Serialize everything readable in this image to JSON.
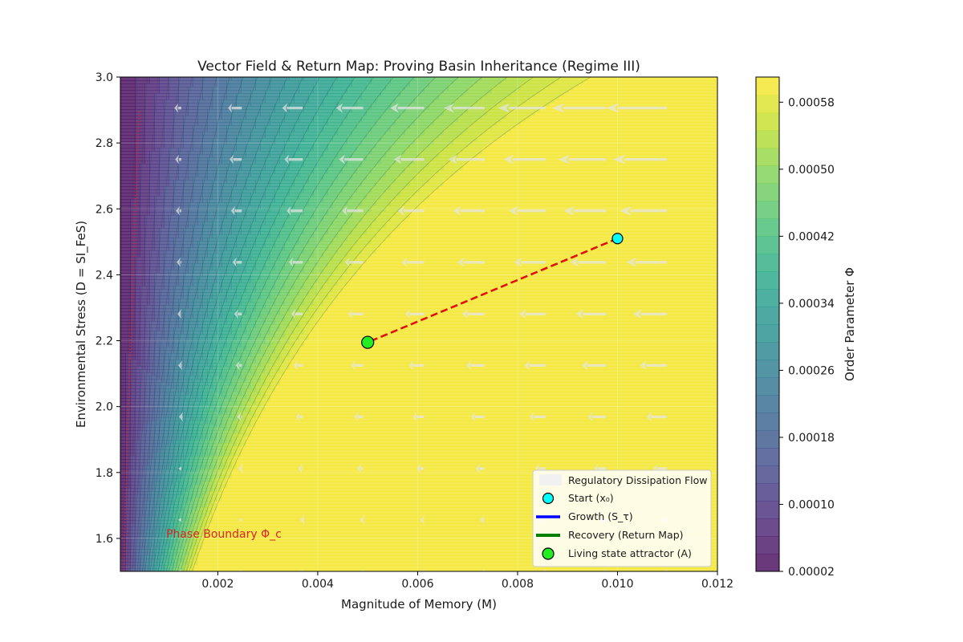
{
  "chart_data": {
    "type": "heatmap",
    "title": "Vector Field & Return Map: Proving Basin Inheritance (Regime III)",
    "xlabel": "Magnitude of Memory (M)",
    "ylabel": "Environmental Stress (D = SI_FeS)",
    "xlim": [
      5e-05,
      0.012
    ],
    "ylim": [
      1.5,
      3.0
    ],
    "x_ticks": [
      "0.002",
      "0.004",
      "0.006",
      "0.008",
      "0.010",
      "0.012"
    ],
    "x_tick_values": [
      0.002,
      0.004,
      0.006,
      0.008,
      0.01,
      0.012
    ],
    "y_ticks": [
      "1.6",
      "1.8",
      "2.0",
      "2.2",
      "2.4",
      "2.6",
      "2.8",
      "3.0"
    ],
    "y_tick_values": [
      1.6,
      1.8,
      2.0,
      2.2,
      2.4,
      2.6,
      2.8,
      3.0
    ],
    "colorbar": {
      "label": "Order Parameter Φ",
      "ticks": [
        "0.00002",
        "0.00010",
        "0.00018",
        "0.00026",
        "0.00034",
        "0.00042",
        "0.00050",
        "0.00058"
      ],
      "tick_values": [
        2e-05,
        0.0001,
        0.00018,
        0.00026,
        0.00034,
        0.00042,
        0.0005,
        0.00058
      ],
      "range": [
        2e-05,
        0.00061
      ],
      "colormap": "viridis"
    },
    "field_model": "Phi = M / (D^2 * (1 + 83*M))",
    "vector_field": {
      "x": [
        5e-05,
        0.00127,
        0.00248,
        0.0037,
        0.00491,
        0.00613,
        0.00734,
        0.00856,
        0.00977,
        0.01099
      ],
      "y": [
        1.5,
        1.656,
        1.812,
        1.969,
        2.125,
        2.281,
        2.438,
        2.594,
        2.75,
        2.906
      ],
      "dx_model": "-M * (D - 1.5)",
      "color": "#e6e6e6"
    },
    "phase_boundary": {
      "label": "Phase Boundary Φ_c",
      "M": [
        0.00012,
        0.00015,
        0.00019,
        0.00023,
        0.00028,
        0.00032,
        0.00037,
        0.00042
      ],
      "D": [
        1.5,
        1.7,
        1.9,
        2.1,
        2.3,
        2.5,
        2.7,
        2.9
      ],
      "color": "#d62728"
    },
    "trajectory": {
      "x": [
        0.01,
        0.005
      ],
      "y": [
        2.51,
        2.195
      ],
      "color": "#e01010"
    },
    "start_point": {
      "x": 0.01,
      "y": 2.51,
      "color": "#00ffff"
    },
    "attractor_point": {
      "x": 0.005,
      "y": 2.195,
      "color": "#22ee22"
    },
    "legend_position": "lower right",
    "legend": [
      {
        "label": "Regulatory Dissipation Flow",
        "color": "#e6e6e6"
      },
      {
        "label": "Start (x₀)",
        "color": "#00ffff"
      },
      {
        "label": "Growth (S_τ)",
        "color": "#0000ff"
      },
      {
        "label": "Recovery (Return Map)",
        "color": "#008000"
      },
      {
        "label": "Living state attractor (A)",
        "color": "#22ee22"
      }
    ],
    "grid": true
  }
}
